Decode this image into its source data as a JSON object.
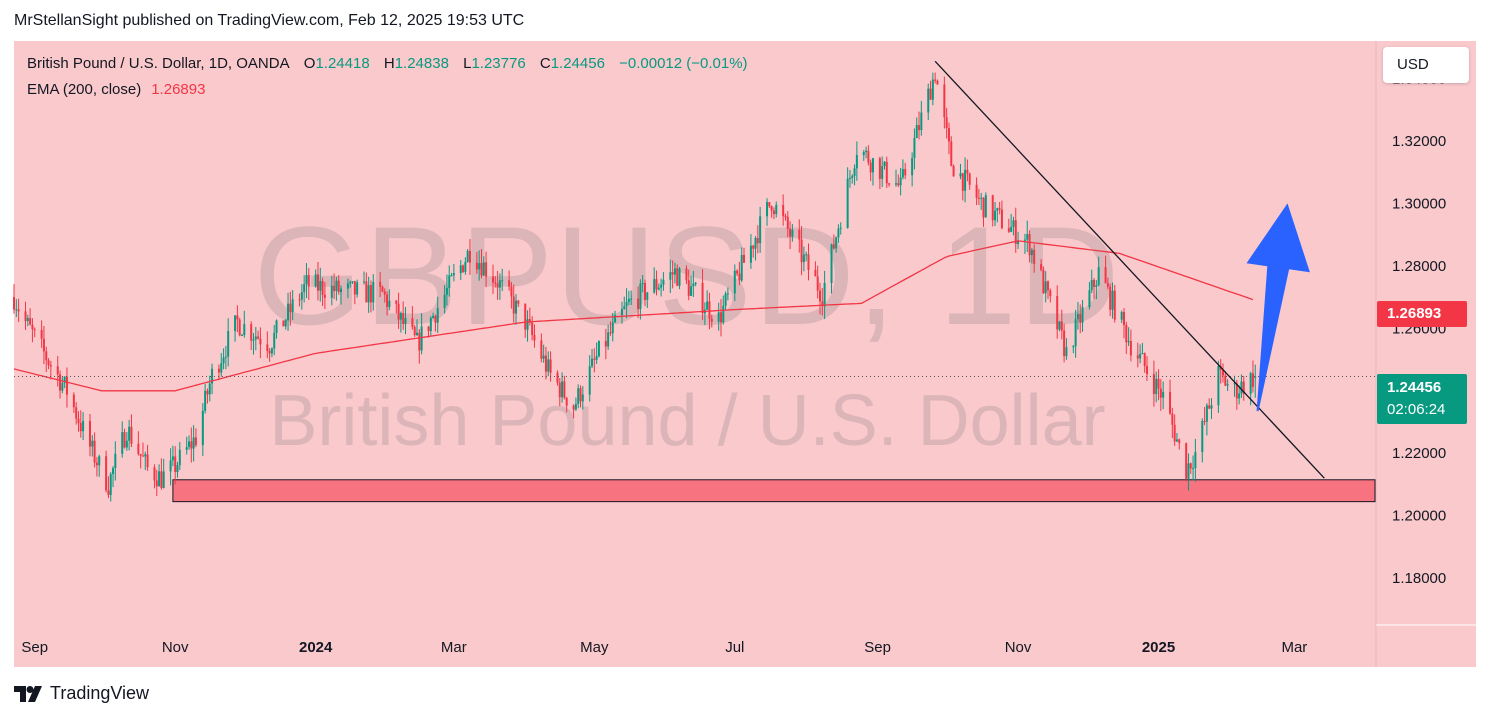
{
  "header": {
    "text": "MrStellanSight published on TradingView.com, Feb 12, 2025 19:53 UTC"
  },
  "legend": {
    "title": "British Pound / U.S. Dollar, 1D, OANDA",
    "o_label": "O",
    "o_value": "1.24418",
    "h_label": "H",
    "h_value": "1.24838",
    "l_label": "L",
    "l_value": "1.23776",
    "c_label": "C",
    "c_value": "1.24456",
    "change": "−0.00012 (−0.01%)",
    "ema_label": "EMA (200, close)",
    "ema_value": "1.26893"
  },
  "watermark": {
    "symbol": "GBPUSD, 1D",
    "name": "British Pound / U.S. Dollar"
  },
  "currency_button": "USD",
  "price_tags": {
    "ema": "1.26893",
    "last": "1.24456",
    "countdown": "02:06:24"
  },
  "brand": {
    "name": "TradingView"
  },
  "colors": {
    "background": "#f9c9cc",
    "up": "#089981",
    "down": "#f23645",
    "ema": "#f23645",
    "zone": "#f7737f",
    "arrow": "#2962ff"
  },
  "chart_data": {
    "type": "candlestick",
    "symbol": "GBPUSD",
    "timeframe": "1D",
    "y_axis": {
      "ylim": [
        1.165,
        1.352
      ],
      "ticks": [
        "1.34000",
        "1.32000",
        "1.30000",
        "1.28000",
        "1.26000",
        "1.22000",
        "1.20000",
        "1.18000"
      ]
    },
    "x_axis": {
      "ticks": [
        "Sep",
        "Nov",
        "2024",
        "Mar",
        "May",
        "Jul",
        "Sep",
        "Nov",
        "2025",
        "Mar"
      ],
      "start": "2023-08-23",
      "end": "2025-04-05"
    },
    "price_path": [
      [
        "2023-08-23",
        1.27
      ],
      [
        "2023-08-28",
        1.262
      ],
      [
        "2023-09-05",
        1.252
      ],
      [
        "2023-09-15",
        1.24
      ],
      [
        "2023-09-25",
        1.222
      ],
      [
        "2023-10-03",
        1.21
      ],
      [
        "2023-10-11",
        1.228
      ],
      [
        "2023-10-20",
        1.215
      ],
      [
        "2023-10-26",
        1.212
      ],
      [
        "2023-11-01",
        1.216
      ],
      [
        "2023-11-10",
        1.225
      ],
      [
        "2023-11-17",
        1.245
      ],
      [
        "2023-11-28",
        1.262
      ],
      [
        "2023-12-12",
        1.255
      ],
      [
        "2023-12-28",
        1.274
      ],
      [
        "2024-01-12",
        1.272
      ],
      [
        "2024-01-30",
        1.271
      ],
      [
        "2024-02-14",
        1.255
      ],
      [
        "2024-03-08",
        1.285
      ],
      [
        "2024-03-20",
        1.275
      ],
      [
        "2024-04-01",
        1.262
      ],
      [
        "2024-04-12",
        1.245
      ],
      [
        "2024-04-22",
        1.235
      ],
      [
        "2024-05-03",
        1.252
      ],
      [
        "2024-05-16",
        1.268
      ],
      [
        "2024-06-05",
        1.278
      ],
      [
        "2024-06-24",
        1.263
      ],
      [
        "2024-07-17",
        1.301
      ],
      [
        "2024-08-08",
        1.271
      ],
      [
        "2024-08-23",
        1.318
      ],
      [
        "2024-09-11",
        1.305
      ],
      [
        "2024-09-26",
        1.342
      ],
      [
        "2024-10-03",
        1.313
      ],
      [
        "2024-10-16",
        1.3
      ],
      [
        "2024-11-06",
        1.287
      ],
      [
        "2024-11-22",
        1.252
      ],
      [
        "2024-12-06",
        1.278
      ],
      [
        "2024-12-20",
        1.255
      ],
      [
        "2025-01-03",
        1.238
      ],
      [
        "2025-01-13",
        1.215
      ],
      [
        "2025-01-17",
        1.22
      ],
      [
        "2025-01-27",
        1.245
      ],
      [
        "2025-02-03",
        1.24
      ],
      [
        "2025-02-12",
        1.2446
      ]
    ],
    "ema200": [
      [
        "2023-08-23",
        1.247
      ],
      [
        "2023-09-30",
        1.24
      ],
      [
        "2023-11-01",
        1.24
      ],
      [
        "2024-01-01",
        1.252
      ],
      [
        "2024-04-01",
        1.262
      ],
      [
        "2024-07-01",
        1.266
      ],
      [
        "2024-08-25",
        1.268
      ],
      [
        "2024-10-01",
        1.283
      ],
      [
        "2024-11-01",
        1.288
      ],
      [
        "2024-12-15",
        1.284
      ],
      [
        "2025-02-12",
        1.26893
      ]
    ],
    "last": {
      "open": 1.24418,
      "high": 1.24838,
      "low": 1.23776,
      "close": 1.24456,
      "change": -0.00012,
      "change_pct": -0.01
    },
    "annotations": {
      "trendline": {
        "from": [
          "2024-09-26",
          1.3455
        ],
        "to": [
          "2025-03-14",
          1.212
        ]
      },
      "support_zone": {
        "from": "2023-10-31",
        "to": "2025-04-05",
        "low": 1.2045,
        "high": 1.2115
      },
      "arrow": {
        "direction": "up",
        "from": [
          "2025-02-13",
          1.2335
        ],
        "to": [
          "2025-02-26",
          1.3
        ]
      }
    }
  }
}
